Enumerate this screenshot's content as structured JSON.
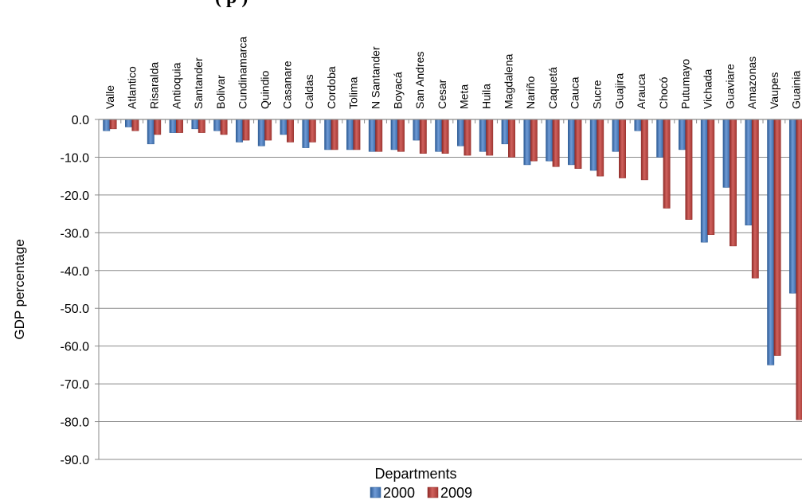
{
  "chart_data": {
    "type": "bar",
    "title_fragment": "(                    p                          )",
    "xlabel": "Departments",
    "ylabel": "GDP percentage",
    "ylim": [
      -90,
      0
    ],
    "yticks": [
      "0.0",
      "-10.0",
      "-20.0",
      "-30.0",
      "-40.0",
      "-50.0",
      "-60.0",
      "-70.0",
      "-80.0",
      "-90.0"
    ],
    "grid": true,
    "legend_position": "bottom",
    "categories": [
      "Valle",
      "Atlantico",
      "Risaralda",
      "Antioquia",
      "Santander",
      "Bolivar",
      "Cundinamarca",
      "Quindio",
      "Casanare",
      "Caldas",
      "Cordoba",
      "Tolima",
      "N Santander",
      "Boyacá",
      "San Andres",
      "Cesar",
      "Meta",
      "Huila",
      "Magdalena",
      "Nariño",
      "Caquetá",
      "Cauca",
      "Sucre",
      "Guajira",
      "Arauca",
      "Chocó",
      "Putumayo",
      "Vichada",
      "Guaviare",
      "Amazonas",
      "Vaupes",
      "Guainia"
    ],
    "series": [
      {
        "name": "2000",
        "color": "#4a7ebb",
        "values": [
          -3.0,
          -2.0,
          -6.5,
          -3.5,
          -2.5,
          -3.0,
          -6.0,
          -7.0,
          -4.0,
          -7.5,
          -8.0,
          -8.0,
          -8.5,
          -8.0,
          -5.5,
          -8.5,
          -7.0,
          -8.5,
          -6.5,
          -12.0,
          -11.0,
          -12.0,
          -13.5,
          -8.5,
          -3.0,
          -10.0,
          -8.0,
          -32.5,
          -18.0,
          -28.0,
          -65.0,
          -46.0
        ]
      },
      {
        "name": "2009",
        "color": "#be4b48",
        "values": [
          -2.5,
          -3.0,
          -4.0,
          -3.5,
          -3.5,
          -4.0,
          -5.5,
          -5.5,
          -6.0,
          -6.0,
          -8.0,
          -8.0,
          -8.5,
          -8.5,
          -9.0,
          -9.0,
          -9.5,
          -9.5,
          -10.0,
          -11.0,
          -12.5,
          -13.0,
          -15.0,
          -15.5,
          -16.0,
          -23.5,
          -26.5,
          -30.5,
          -33.5,
          -42.0,
          -62.5,
          -79.5
        ]
      }
    ]
  }
}
